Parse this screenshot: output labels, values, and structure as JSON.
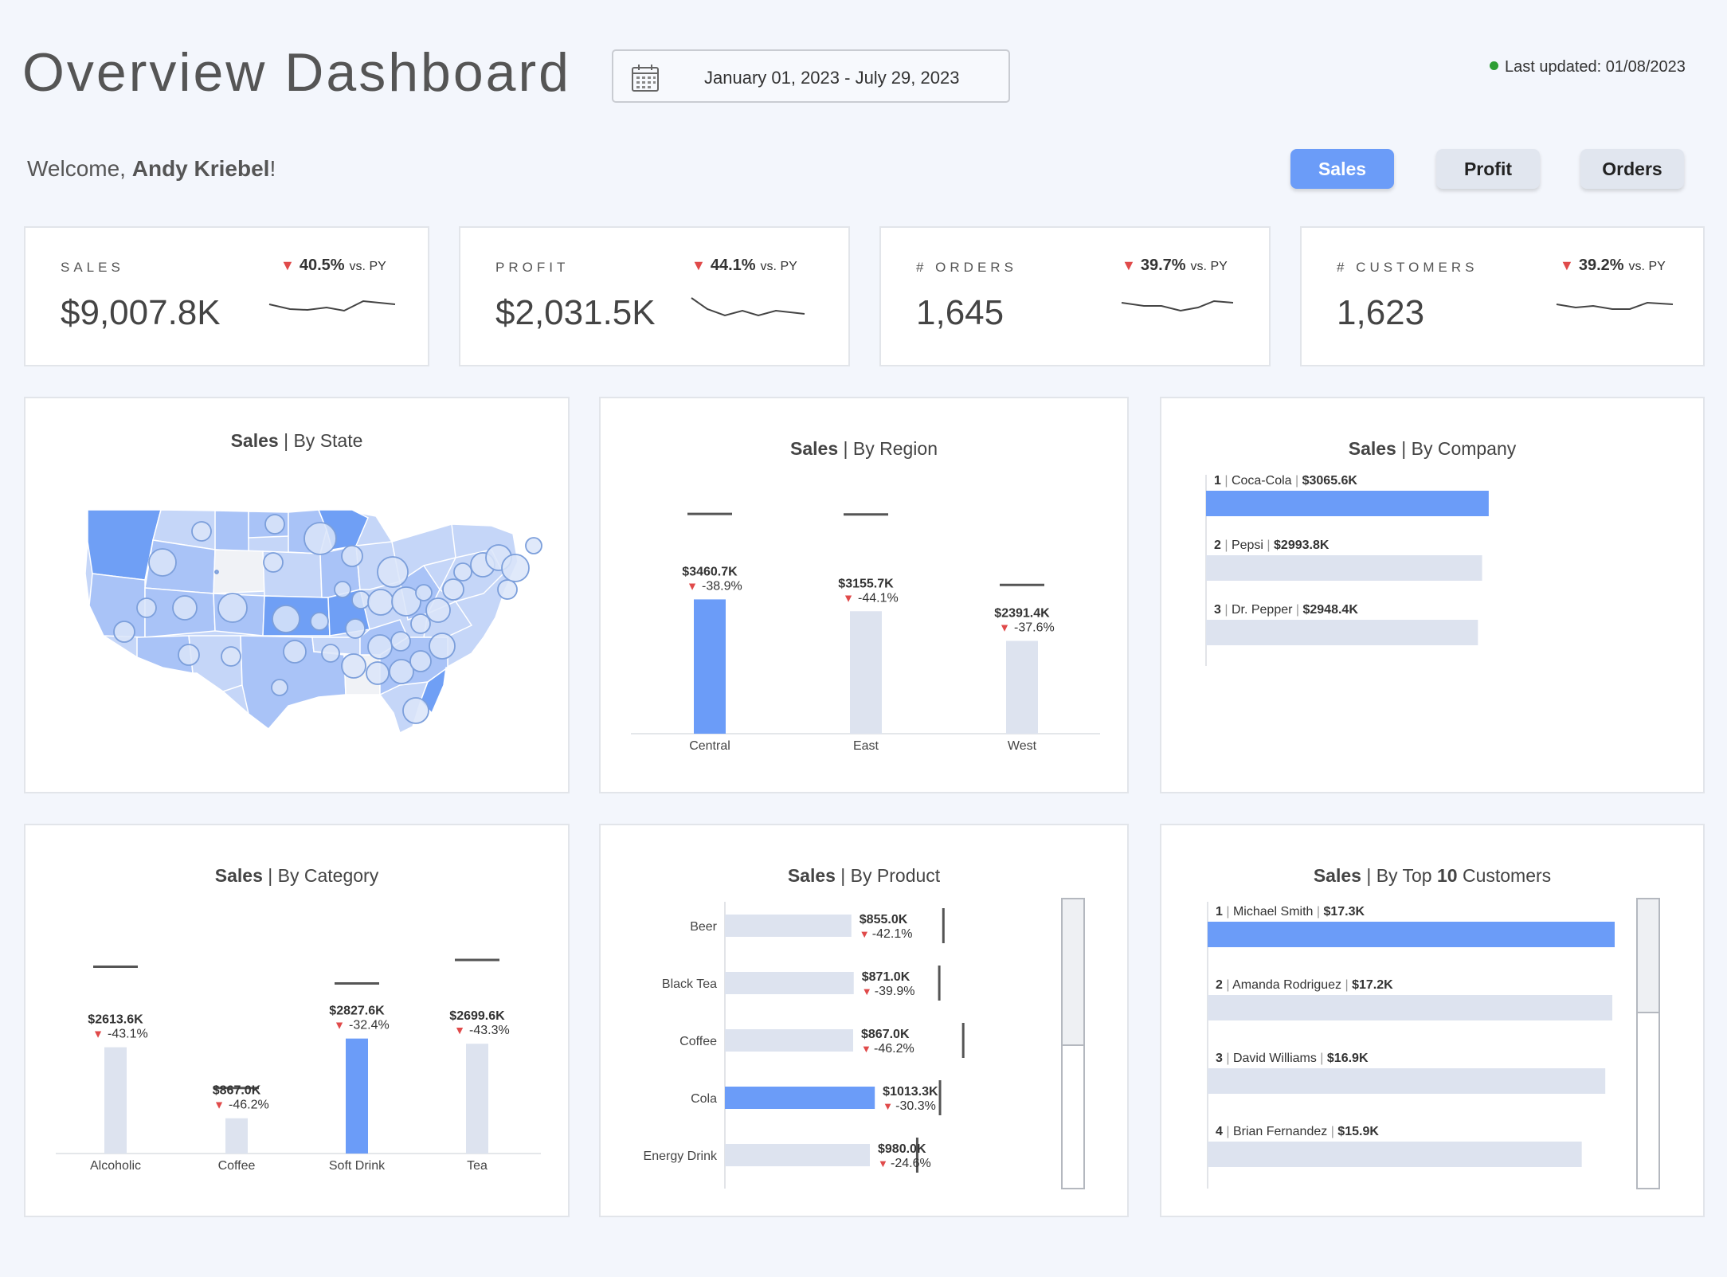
{
  "header": {
    "title": "Overview Dashboard",
    "date_range": "January 01, 2023 - July 29, 2023",
    "last_updated": "Last updated: 01/08/2023",
    "welcome_prefix": "Welcome, ",
    "user_name": "Andy Kriebel",
    "welcome_suffix": "!"
  },
  "toggles": [
    {
      "label": "Sales",
      "active": true
    },
    {
      "label": "Profit",
      "active": false
    },
    {
      "label": "Orders",
      "active": false
    }
  ],
  "kpis": [
    {
      "label": "SALES",
      "value": "$9,007.8K",
      "change": "40.5%",
      "vs": "vs. PY",
      "direction": "down"
    },
    {
      "label": "PROFIT",
      "value": "$2,031.5K",
      "change": "44.1%",
      "vs": "vs. PY",
      "direction": "down"
    },
    {
      "label": "# ORDERS",
      "value": "1,645",
      "change": "39.7%",
      "vs": "vs. PY",
      "direction": "down"
    },
    {
      "label": "# CUSTOMERS",
      "value": "1,623",
      "change": "39.2%",
      "vs": "vs. PY",
      "direction": "down"
    }
  ],
  "colors": {
    "accent": "#6b9cf8",
    "muted_bar": "#dde3ef",
    "negative": "#e04a4a",
    "map_light": "#c5d6f8",
    "map_mid": "#a9c3f7",
    "map_dark": "#6f9ff5"
  },
  "panels": {
    "state": {
      "title_bold": "Sales",
      "title_rest": " | By State"
    },
    "region": {
      "title_bold": "Sales",
      "title_rest": " | By Region"
    },
    "company": {
      "title_bold": "Sales",
      "title_rest": " | By Company"
    },
    "category": {
      "title_bold": "Sales",
      "title_rest": " | By Category"
    },
    "product": {
      "title_bold": "Sales",
      "title_rest": " | By Product"
    },
    "customers": {
      "title_bold": "Sales",
      "title_rest": " | By Top ",
      "title_num": "10",
      "title_end": " Customers"
    }
  },
  "chart_data": [
    {
      "id": "region",
      "type": "bar",
      "categories": [
        "Central",
        "East",
        "West"
      ],
      "values": [
        3460.7,
        3155.7,
        2391.4
      ],
      "value_labels": [
        "$3460.7K",
        "$3155.7K",
        "$2391.4K"
      ],
      "change_labels": [
        "-38.9%",
        "-44.1%",
        "-37.6%"
      ],
      "prior_year": [
        5663,
        5650,
        3833
      ],
      "highlighted": "Central",
      "ylim": [
        0,
        7000
      ]
    },
    {
      "id": "company",
      "type": "bar",
      "orientation": "horizontal",
      "ranks": [
        "1",
        "2",
        "3"
      ],
      "categories": [
        "Coca-Cola",
        "Pepsi",
        "Dr. Pepper"
      ],
      "values": [
        3065.6,
        2993.8,
        2948.4
      ],
      "value_labels": [
        "$3065.6K",
        "$2993.8K",
        "$2948.4K"
      ],
      "highlighted": "Coca-Cola",
      "xlim": [
        0,
        3300
      ]
    },
    {
      "id": "category",
      "type": "bar",
      "categories": [
        "Alcoholic",
        "Coffee",
        "Soft Drink",
        "Tea"
      ],
      "values": [
        2613.6,
        867.0,
        2827.6,
        2699.6
      ],
      "value_labels": [
        "$2613.6K",
        "$867.0K",
        "$2827.6K",
        "$2699.6K"
      ],
      "change_labels": [
        "-43.1%",
        "-46.2%",
        "-32.4%",
        "-43.3%"
      ],
      "prior_year": [
        4593,
        1612,
        4183,
        4761
      ],
      "highlighted": "Soft Drink",
      "ylim": [
        0,
        6700
      ]
    },
    {
      "id": "product",
      "type": "bar",
      "orientation": "horizontal",
      "categories": [
        "Beer",
        "Black Tea",
        "Coffee",
        "Cola",
        "Energy Drink"
      ],
      "values": [
        855.0,
        871.0,
        867.0,
        1013.3,
        980.0
      ],
      "value_labels": [
        "$855.0K",
        "$871.0K",
        "$867.0K",
        "$1013.3K",
        "$980.0K"
      ],
      "change_labels": [
        "-42.1%",
        "-39.9%",
        "-46.2%",
        "-30.3%",
        "-24.6%"
      ],
      "prior_year": [
        1477,
        1449,
        1611,
        1454,
        1300
      ],
      "highlighted": "Cola",
      "xlim": [
        0,
        2100
      ]
    },
    {
      "id": "customers",
      "type": "bar",
      "orientation": "horizontal",
      "ranks": [
        "1",
        "2",
        "3",
        "4"
      ],
      "categories": [
        "Michael Smith",
        "Amanda Rodriguez",
        "David Williams",
        "Brian Fernandez"
      ],
      "values": [
        17.3,
        17.2,
        16.9,
        15.9
      ],
      "value_labels": [
        "$17.3K",
        "$17.2K",
        "$16.9K",
        "$15.9K"
      ],
      "highlighted": "Michael Smith",
      "xlim": [
        0,
        17.3
      ]
    }
  ]
}
